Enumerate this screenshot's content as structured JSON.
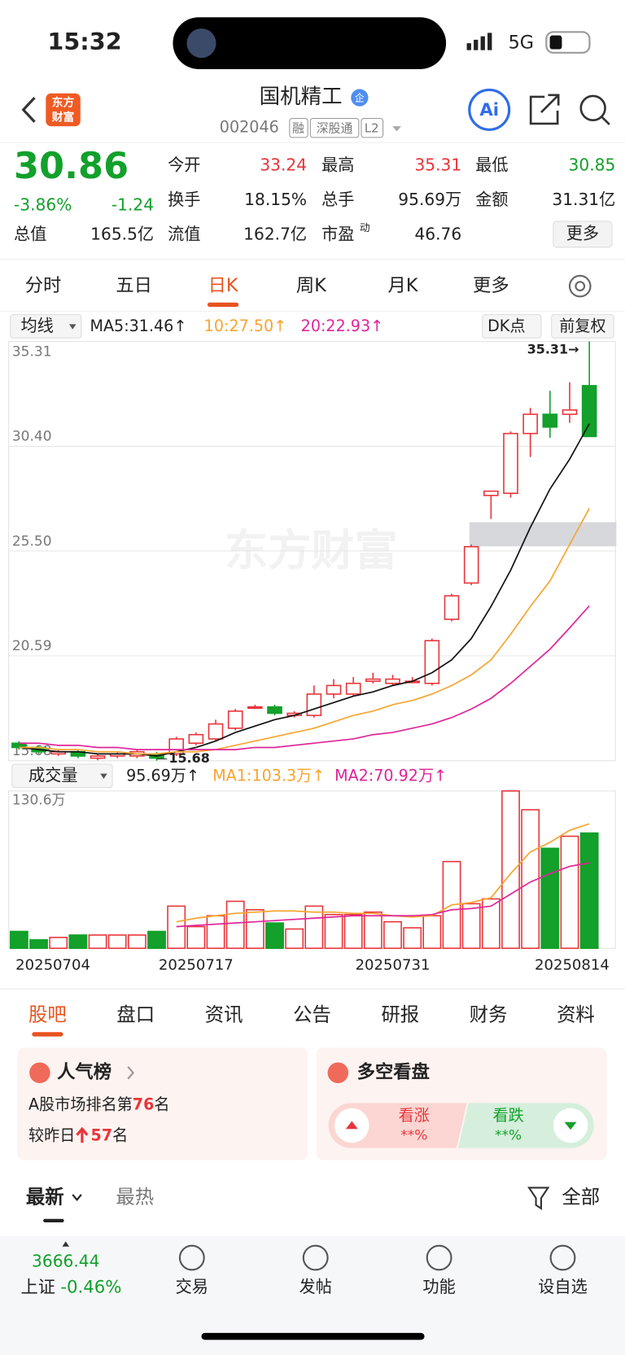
{
  "status_bar": {
    "time": "15:32",
    "network": "5G"
  },
  "header": {
    "logo": [
      "东方",
      "财富"
    ],
    "name": "国机精工",
    "badge": "企",
    "code": "002046",
    "tags": [
      "融",
      "深股通",
      "L2"
    ],
    "ai": "Ai"
  },
  "quote": {
    "price": "30.86",
    "change_pct": "-3.86%",
    "change": "-1.24",
    "stats": [
      {
        "label": "今开",
        "value": "33.24"
      },
      {
        "label": "最高",
        "value": "35.31"
      },
      {
        "label": "最低",
        "value": "30.85"
      },
      {
        "label": "换手",
        "value": "18.15%"
      },
      {
        "label": "总手",
        "value": "95.69万"
      },
      {
        "label": "金额",
        "value": "31.31亿"
      },
      {
        "label": "总值",
        "value": "165.5亿"
      },
      {
        "label": "流值",
        "value": "162.7亿"
      },
      {
        "label": "市盈",
        "sup": "动",
        "value": "46.76"
      }
    ],
    "more": "更多"
  },
  "period_tabs": [
    "分时",
    "五日",
    "日K",
    "周K",
    "月K",
    "更多"
  ],
  "kline_toolbar": {
    "ma": "均线",
    "ma5": "MA5:31.46↑",
    "ma10": "10:27.50↑",
    "ma20": "20:22.93↑",
    "dk": "DK点",
    "adjust": "前复权"
  },
  "volume_toolbar": {
    "label": "成交量",
    "vol": "95.69万↑",
    "ma1": "MA1:103.3万↑",
    "ma2": "MA2:70.92万↑"
  },
  "chart_data": [
    {
      "type": "candlestick",
      "watermark": "东方财富",
      "up_color": "#e8353a",
      "down_color": "#13a02b",
      "ylim": [
        15.68,
        35.31
      ],
      "yticks": [
        35.31,
        {
          "value": 30.4,
          "label": "30.40"
        },
        {
          "value": 25.5,
          "label": "25.50"
        },
        20.59,
        15.68
      ],
      "grid": true,
      "high_label": "35.31→",
      "low_label": "15.68",
      "open": [
        16.5,
        16.3,
        16.0,
        16.1,
        15.8,
        15.9,
        15.9,
        16.0,
        16.0,
        16.5,
        16.7,
        17.2,
        18.2,
        18.2,
        17.8,
        17.8,
        18.8,
        18.8,
        19.4,
        19.3,
        19.4,
        19.3,
        22.3,
        24.0,
        28.1,
        28.2,
        31.0,
        31.9,
        31.9,
        33.24
      ],
      "high": [
        16.6,
        16.4,
        16.2,
        16.2,
        16.0,
        16.1,
        16.2,
        16.1,
        16.8,
        17.0,
        17.6,
        18.1,
        18.3,
        18.3,
        18.0,
        19.2,
        19.5,
        19.6,
        19.8,
        19.7,
        19.6,
        21.4,
        23.5,
        25.8,
        28.3,
        31.1,
        32.2,
        33.0,
        33.4,
        35.31
      ],
      "low": [
        16.2,
        16.0,
        15.9,
        15.8,
        15.7,
        15.8,
        15.8,
        15.68,
        15.9,
        16.4,
        16.6,
        17.1,
        18.1,
        17.8,
        17.7,
        17.7,
        18.6,
        18.7,
        19.3,
        19.2,
        19.3,
        19.2,
        22.2,
        23.9,
        27.0,
        28.0,
        29.9,
        30.8,
        31.5,
        30.85
      ],
      "close": [
        16.3,
        16.1,
        16.1,
        15.9,
        15.9,
        16.0,
        16.1,
        15.8,
        16.7,
        16.9,
        17.4,
        18.0,
        18.2,
        17.9,
        17.9,
        18.8,
        19.2,
        19.3,
        19.5,
        19.5,
        19.4,
        21.3,
        23.4,
        25.7,
        28.3,
        31.0,
        31.9,
        31.3,
        32.1,
        30.86
      ],
      "lines": [
        {
          "color": "#111111",
          "values": [
            16.3,
            16.2,
            16.1,
            16.1,
            16.0,
            16.0,
            16.0,
            15.9,
            16.1,
            16.3,
            16.6,
            17.0,
            17.3,
            17.6,
            17.8,
            18.1,
            18.4,
            18.7,
            18.9,
            19.2,
            19.4,
            19.8,
            20.4,
            21.4,
            22.9,
            24.6,
            26.6,
            28.4,
            29.8,
            31.46
          ]
        },
        {
          "color": "#f7a531",
          "values": [
            16.3,
            16.3,
            16.2,
            16.2,
            16.1,
            16.1,
            16.0,
            16.0,
            16.1,
            16.1,
            16.2,
            16.4,
            16.6,
            16.8,
            17.0,
            17.2,
            17.5,
            17.8,
            18.0,
            18.3,
            18.5,
            18.8,
            19.2,
            19.7,
            20.4,
            21.6,
            22.9,
            24.1,
            25.8,
            27.5
          ]
        },
        {
          "color": "#e0259a",
          "values": [
            16.5,
            16.5,
            16.4,
            16.4,
            16.3,
            16.3,
            16.2,
            16.2,
            16.2,
            16.2,
            16.2,
            16.2,
            16.3,
            16.3,
            16.4,
            16.5,
            16.6,
            16.7,
            16.9,
            17.0,
            17.2,
            17.4,
            17.7,
            18.1,
            18.6,
            19.3,
            20.1,
            20.9,
            21.9,
            22.93
          ]
        }
      ]
    },
    {
      "type": "bar",
      "ylim": [
        0,
        130.6
      ],
      "yticks": [
        {
          "value": 130.6,
          "label": "130.6万"
        }
      ],
      "categories": [
        "20250704",
        null,
        null,
        null,
        null,
        null,
        null,
        null,
        null,
        "20250717",
        null,
        null,
        null,
        null,
        null,
        null,
        null,
        null,
        null,
        "20250731",
        null,
        null,
        null,
        null,
        null,
        null,
        null,
        null,
        null,
        "20250814"
      ],
      "values": [
        14,
        7,
        9,
        11,
        11,
        11,
        11,
        14,
        35,
        18,
        27,
        39,
        32,
        21,
        16,
        35,
        28,
        28,
        30,
        22,
        17,
        27,
        72,
        37,
        41,
        130.6,
        115,
        83,
        93,
        95.69
      ],
      "lines": [
        {
          "color": "#f7a531",
          "values": [
            null,
            null,
            null,
            null,
            null,
            null,
            null,
            null,
            22,
            25,
            27,
            29,
            30,
            31,
            31,
            30,
            30,
            29,
            29,
            27,
            26,
            27,
            36,
            38,
            42,
            62,
            80,
            88,
            98,
            103.3
          ]
        },
        {
          "color": "#e0259a",
          "values": [
            null,
            null,
            null,
            null,
            null,
            null,
            null,
            null,
            18,
            19,
            20,
            21,
            22,
            23,
            24,
            25,
            26,
            27,
            27,
            27,
            27,
            28,
            32,
            33,
            35,
            45,
            55,
            62,
            68,
            70.92
          ]
        }
      ]
    }
  ],
  "section_tabs": [
    "股吧",
    "盘口",
    "资讯",
    "公告",
    "研报",
    "财务",
    "资料"
  ],
  "popularity": {
    "title": "人气榜",
    "rank_prefix": "A股市场排名第",
    "rank": "76",
    "rank_suffix": "名",
    "change_prefix": "较昨日",
    "change": "57",
    "change_suffix": "名"
  },
  "sentiment": {
    "title": "多空看盘",
    "up": "看涨",
    "up_value": "**%",
    "down": "看跌",
    "down_value": "**%"
  },
  "feed_tabs": [
    "最新",
    "最热"
  ],
  "filter": "全部",
  "bottom_nav": {
    "index_value": "3666.44",
    "index_name": "上证",
    "index_change": "-0.46%",
    "items": [
      "交易",
      "发帖",
      "功能",
      "设自选"
    ]
  }
}
